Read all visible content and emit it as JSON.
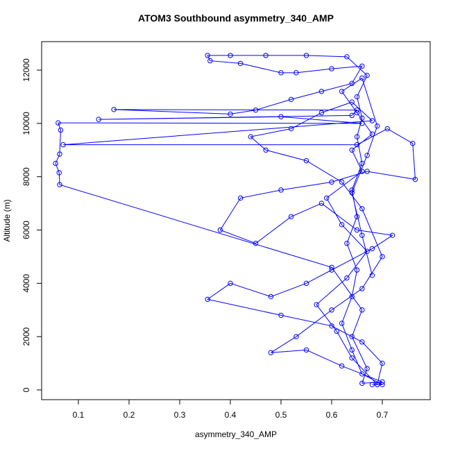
{
  "chart_data": {
    "type": "line",
    "title": "ATOM3 Southbound asymmetry_340_AMP",
    "x_label": "asymmetry_340_AMP",
    "y_label": "Altitude (m)",
    "color": "#0000ff",
    "markers": true,
    "grid": false,
    "xlim": [
      0.0274,
      0.7945
    ],
    "ylim": [
      -365,
      13068
    ],
    "xticks": [
      0.1,
      0.2,
      0.3,
      0.4,
      0.5,
      0.6,
      0.7
    ],
    "yticks": [
      0,
      2000,
      4000,
      6000,
      8000,
      10000,
      12000
    ],
    "x": [
      0.68,
      0.69,
      0.7,
      0.66,
      0.64,
      0.62,
      0.64,
      0.65,
      0.63,
      0.65,
      0.64,
      0.66,
      0.65,
      0.66,
      0.65,
      0.67,
      0.63,
      0.55,
      0.47,
      0.4,
      0.355,
      0.36,
      0.42,
      0.5,
      0.53,
      0.6,
      0.66,
      0.64,
      0.58,
      0.52,
      0.45,
      0.4,
      0.17,
      0.65,
      0.64,
      0.14,
      0.5,
      0.66,
      0.06,
      0.065,
      0.063,
      0.055,
      0.062,
      0.063,
      0.6,
      0.66,
      0.64,
      0.67,
      0.66,
      0.7,
      0.62,
      0.55,
      0.48,
      0.53,
      0.6,
      0.66,
      0.7,
      0.66,
      0.62,
      0.55,
      0.47,
      0.44,
      0.52,
      0.58,
      0.64,
      0.68,
      0.07,
      0.65,
      0.71,
      0.76,
      0.765,
      0.67,
      0.6,
      0.5,
      0.42,
      0.38,
      0.45,
      0.52,
      0.58,
      0.65,
      0.72,
      0.68,
      0.6,
      0.55,
      0.48,
      0.4,
      0.355,
      0.5,
      0.6,
      0.66,
      0.7,
      0.69,
      0.64,
      0.61,
      0.57,
      0.63,
      0.67,
      0.62,
      0.59,
      0.66,
      0.64,
      0.68,
      0.65,
      0.62,
      0.66,
      0.69,
      0.67,
      0.64,
      0.66,
      0.68
    ],
    "values": [
      200,
      200,
      200,
      600,
      1500,
      2500,
      3500,
      4500,
      5500,
      6500,
      7500,
      8500,
      9500,
      10200,
      11000,
      11800,
      12500,
      12550,
      12550,
      12550,
      12550,
      12350,
      12250,
      11900,
      11900,
      12050,
      12150,
      11500,
      11200,
      10900,
      10500,
      10350,
      10520,
      10500,
      10300,
      10150,
      10250,
      10000,
      10020,
      9750,
      8850,
      8500,
      8150,
      7700,
      4600,
      3000,
      2000,
      800,
      250,
      300,
      900,
      1500,
      1400,
      2000,
      3000,
      3800,
      5000,
      6800,
      7800,
      8600,
      9000,
      9500,
      9800,
      10400,
      10800,
      10100,
      9200,
      9200,
      9800,
      9250,
      7900,
      8200,
      7800,
      7500,
      7200,
      6000,
      5500,
      6500,
      7000,
      6000,
      5800,
      5300,
      4500,
      4000,
      3500,
      4000,
      3400,
      2800,
      2400,
      1800,
      1000,
      200,
      1200,
      2200,
      3200,
      4200,
      5200,
      6200,
      7200,
      8200,
      9000,
      9600,
      10400,
      11200,
      11700,
      9900,
      8800,
      7400,
      5800,
      4300
    ]
  }
}
